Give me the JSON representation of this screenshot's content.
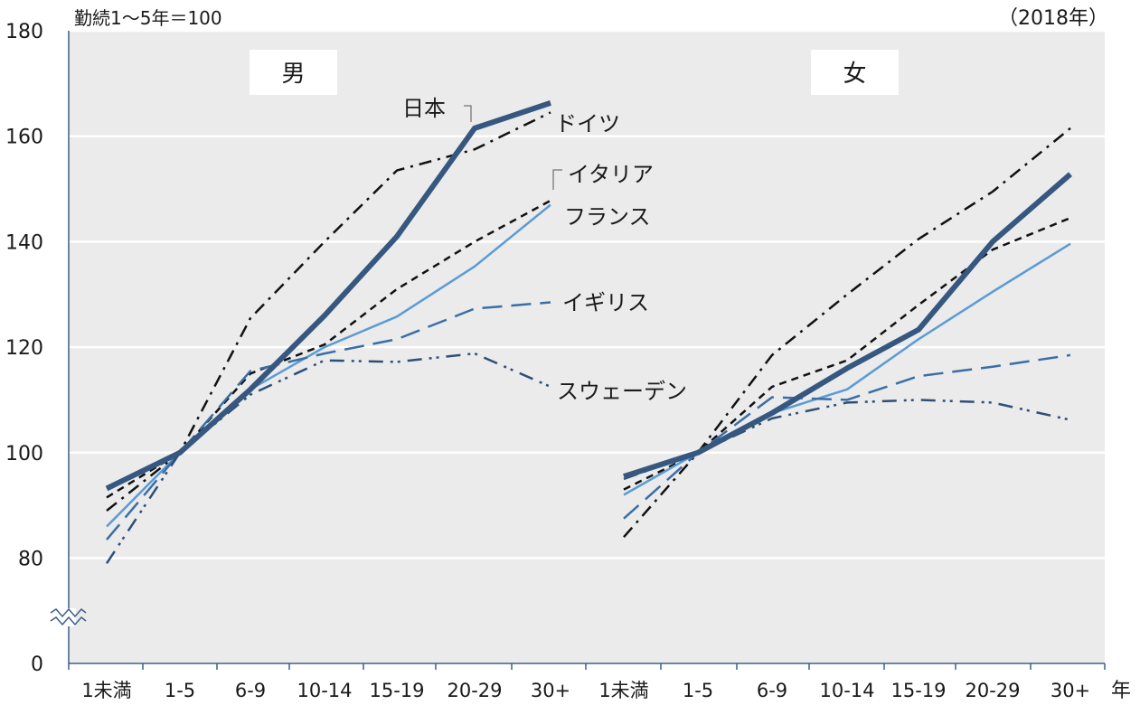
{
  "unit_label": "勤続1～5年＝100",
  "year_label": "（2018年）",
  "x_unit": "年",
  "chart_data": {
    "type": "line",
    "categories": [
      "1未満",
      "1-5",
      "6-9",
      "10-14",
      "15-19",
      "20-29",
      "30+"
    ],
    "ylim": [
      0,
      180
    ],
    "axis_break": [
      0,
      80
    ],
    "yticks": [
      0,
      80,
      100,
      120,
      140,
      160,
      180
    ],
    "grid": true,
    "panels": [
      {
        "title": "男",
        "series": [
          {
            "name": "日本",
            "values": [
              93.2,
              100,
              112,
              126,
              141,
              161.5,
              166.3
            ]
          },
          {
            "name": "ドイツ",
            "values": [
              89,
              100,
              125.5,
              140,
              153.5,
              157.5,
              164.5
            ]
          },
          {
            "name": "イタリア",
            "values": [
              91.5,
              100,
              115,
              120.5,
              131,
              140,
              147.8
            ]
          },
          {
            "name": "フランス",
            "values": [
              86,
              100,
              112,
              120,
              125.8,
              135.3,
              147
            ]
          },
          {
            "name": "イギリス",
            "values": [
              83.5,
              100,
              115.5,
              118.8,
              121.5,
              127.3,
              128.5
            ]
          },
          {
            "name": "スウェーデン",
            "values": [
              79,
              100,
              111,
              117.5,
              117.2,
              118.8,
              112.5
            ]
          }
        ]
      },
      {
        "title": "女",
        "series": [
          {
            "name": "日本",
            "values": [
              95.5,
              100,
              107.5,
              116,
              123.3,
              140,
              152.8
            ]
          },
          {
            "name": "ドイツ",
            "values": [
              84,
              100,
              118.5,
              130,
              140.5,
              149.5,
              161.5
            ]
          },
          {
            "name": "イタリア",
            "values": [
              93,
              100,
              112.5,
              117.5,
              128,
              138.5,
              144.5
            ]
          },
          {
            "name": "フランス",
            "values": [
              92,
              100,
              107.5,
              112,
              121.5,
              130.5,
              139.6
            ]
          },
          {
            "name": "イギリス",
            "values": [
              87.5,
              100,
              110.5,
              110,
              114.5,
              116.3,
              118.5
            ]
          },
          {
            "name": "スウェーデン",
            "values": [
              95,
              100,
              106.5,
              109.5,
              110,
              109.5,
              106.2
            ]
          }
        ]
      }
    ]
  }
}
